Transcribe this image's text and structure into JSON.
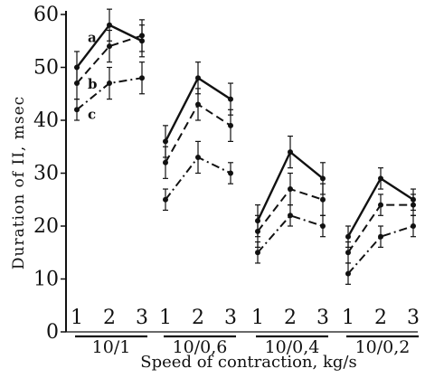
{
  "chart_data": {
    "type": "line",
    "title": "",
    "xlabel": "Speed of contraction, kg/s",
    "ylabel": "Duration of II, msec",
    "ylim": [
      0,
      60
    ],
    "yticks": [
      "0",
      "10",
      "20",
      "30",
      "40",
      "50",
      "60"
    ],
    "grid": false,
    "legend": "inline letters next to the first group",
    "groups": [
      {
        "label": "10/1",
        "x_labels": [
          "1",
          "2",
          "3"
        ]
      },
      {
        "label": "10/0,6",
        "x_labels": [
          "1",
          "2",
          "3"
        ]
      },
      {
        "label": "10/0,4",
        "x_labels": [
          "1",
          "2",
          "3"
        ]
      },
      {
        "label": "10/0,2",
        "x_labels": [
          "1",
          "2",
          "3"
        ]
      }
    ],
    "series": [
      {
        "name": "a",
        "line_style": "solid",
        "values": [
          [
            50,
            58,
            55
          ],
          [
            36,
            48,
            44
          ],
          [
            21,
            34,
            29
          ],
          [
            18,
            29,
            25
          ]
        ],
        "errors": [
          [
            3,
            3,
            3
          ],
          [
            3,
            3,
            3
          ],
          [
            3,
            3,
            3
          ],
          [
            2,
            2,
            2
          ]
        ]
      },
      {
        "name": "b",
        "line_style": "dashed",
        "values": [
          [
            47,
            54,
            56
          ],
          [
            32,
            43,
            39
          ],
          [
            19,
            27,
            25
          ],
          [
            15,
            24,
            24
          ]
        ],
        "errors": [
          [
            3,
            3,
            3
          ],
          [
            3,
            3,
            3
          ],
          [
            3,
            3,
            3
          ],
          [
            2,
            2,
            2
          ]
        ]
      },
      {
        "name": "c",
        "line_style": "dash-dot",
        "values": [
          [
            42,
            47,
            48
          ],
          [
            25,
            33,
            30
          ],
          [
            15,
            22,
            20
          ],
          [
            11,
            18,
            20
          ]
        ],
        "errors": [
          [
            2,
            3,
            3
          ],
          [
            2,
            3,
            2
          ],
          [
            2,
            2,
            2
          ],
          [
            2,
            2,
            2
          ]
        ]
      }
    ],
    "colors": {
      "ink": "#111111",
      "background": "#ffffff"
    }
  }
}
